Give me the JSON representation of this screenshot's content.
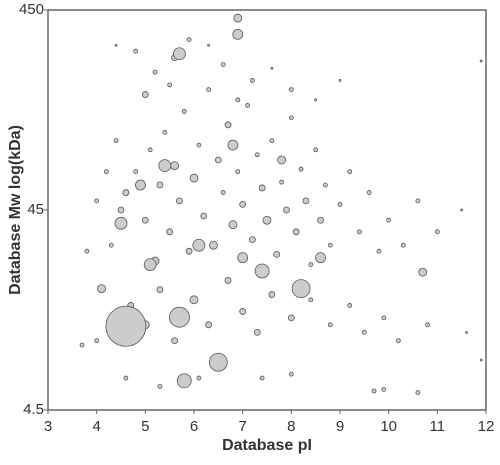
{
  "chart_data": {
    "type": "bubble",
    "x_label": "Database pI",
    "y_label": "Database Mw log(kDa)",
    "xlim": [
      3,
      12
    ],
    "xticks": [
      3,
      4,
      5,
      6,
      7,
      8,
      9,
      10,
      11,
      12
    ],
    "ylim": [
      4.5,
      450
    ],
    "yticks": [
      4.5,
      45,
      450
    ],
    "yscale": "log",
    "color": "#cccccc",
    "edge_color": "#555555",
    "x": [
      4.3,
      4.6,
      4.8,
      5.0,
      5.1,
      5.2,
      5.3,
      5.4,
      5.5,
      5.6,
      5.7,
      5.8,
      5.9,
      6.0,
      6.1,
      6.2,
      6.3,
      6.4,
      6.5,
      6.6,
      6.7,
      6.8,
      6.9,
      7.0,
      7.1,
      7.2,
      7.3,
      7.4,
      7.5,
      7.6,
      7.7,
      7.8,
      7.9,
      8.0,
      8.1,
      8.2,
      8.3,
      8.4,
      8.5,
      8.6,
      8.7,
      8.8,
      9.0,
      9.2,
      9.4,
      9.6,
      9.8,
      10.0,
      10.3,
      10.6,
      11.0,
      11.5,
      11.9,
      11.9,
      4.7,
      5.0,
      5.3,
      5.6,
      6.0,
      6.3,
      6.7,
      7.0,
      7.3,
      7.6,
      8.0,
      8.4,
      8.8,
      9.2,
      9.5,
      9.9,
      10.2,
      10.8,
      11.6,
      3.7,
      4.0,
      4.6,
      5.3,
      6.1,
      7.4,
      8.0,
      9.7,
      9.9,
      10.6,
      4.4,
      4.8,
      5.2,
      5.6,
      5.9,
      6.3,
      6.6,
      7.2,
      7.6,
      8.0,
      8.5,
      9.0,
      5.0,
      5.5,
      6.9,
      3.8,
      4.0,
      4.2,
      4.4,
      4.5,
      4.6,
      5.7,
      6.5,
      5.8,
      6.9,
      6.9,
      5.7,
      8.2,
      7.4,
      4.5,
      4.1,
      5.1,
      6.1,
      7.0,
      5.4,
      4.9,
      6.8,
      7.8,
      8.6,
      10.7
    ],
    "values": [
      30,
      55,
      70,
      40,
      90,
      25,
      60,
      110,
      35,
      75,
      50,
      140,
      28,
      65,
      95,
      42,
      180,
      30,
      80,
      55,
      120,
      38,
      70,
      48,
      150,
      32,
      85,
      58,
      40,
      100,
      27,
      62,
      45,
      130,
      35,
      72,
      50,
      24,
      90,
      40,
      60,
      30,
      48,
      70,
      35,
      55,
      28,
      40,
      30,
      50,
      35,
      45,
      250,
      8,
      15,
      12,
      18,
      10,
      16,
      12,
      20,
      14,
      11,
      17,
      13,
      16,
      12,
      15,
      11,
      13,
      10,
      12,
      11,
      9.5,
      10,
      6.5,
      5.9,
      6.5,
      6.5,
      6.8,
      5.6,
      5.7,
      5.5,
      300,
      280,
      220,
      260,
      320,
      300,
      240,
      200,
      230,
      180,
      160,
      200,
      170,
      190,
      160,
      28,
      50,
      70,
      100,
      45,
      11.8,
      13.1,
      7.8,
      6.3,
      340,
      410,
      272,
      18.2,
      22.3,
      38.6,
      18.2,
      24,
      30,
      26,
      75,
      60,
      95,
      80,
      26,
      22
    ],
    "sizes": [
      2,
      3,
      2,
      3,
      2,
      4,
      3,
      2,
      3,
      4,
      3,
      2,
      3,
      4,
      2,
      3,
      2,
      4,
      3,
      2,
      3,
      4,
      2,
      3,
      2,
      3,
      2,
      3,
      4,
      2,
      3,
      2,
      3,
      2,
      3,
      2,
      3,
      2,
      2,
      3,
      2,
      2,
      2,
      2,
      2,
      2,
      2,
      2,
      2,
      2,
      2,
      1,
      1,
      1,
      3,
      4,
      3,
      3,
      4,
      3,
      3,
      3,
      3,
      3,
      3,
      2,
      2,
      2,
      2,
      2,
      2,
      2,
      1,
      2,
      2,
      2,
      2,
      2,
      2,
      2,
      2,
      2,
      2,
      1,
      2,
      2,
      3,
      2,
      1,
      2,
      2,
      1,
      2,
      1,
      1,
      3,
      2,
      2,
      2,
      2,
      2,
      2,
      3,
      20,
      10,
      9,
      7,
      5,
      4,
      6,
      9,
      7,
      6,
      4,
      6,
      6,
      5,
      6,
      5,
      5,
      4,
      5,
      4
    ]
  }
}
